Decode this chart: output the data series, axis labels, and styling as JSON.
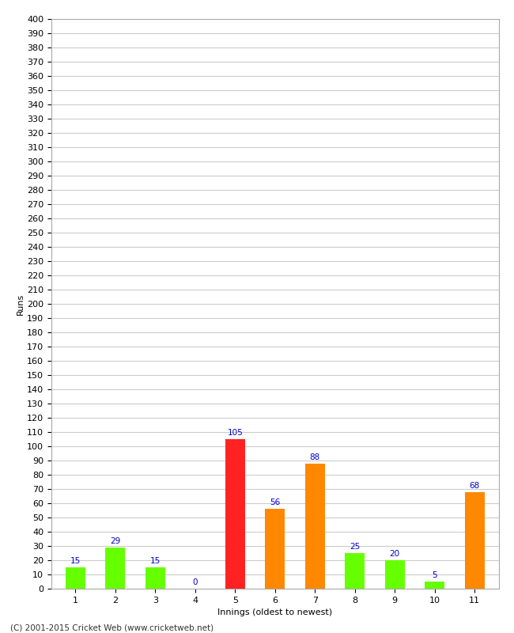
{
  "xlabel": "Innings (oldest to newest)",
  "ylabel": "Runs",
  "categories": [
    1,
    2,
    3,
    4,
    5,
    6,
    7,
    8,
    9,
    10,
    11
  ],
  "values": [
    15,
    29,
    15,
    0,
    105,
    56,
    88,
    25,
    20,
    5,
    68
  ],
  "bar_colors": [
    "#66ff00",
    "#66ff00",
    "#66ff00",
    "#66ff00",
    "#ff2222",
    "#ff8800",
    "#ff8800",
    "#66ff00",
    "#66ff00",
    "#66ff00",
    "#ff8800"
  ],
  "ylim": [
    0,
    400
  ],
  "ytick_step": 10,
  "background_color": "#ffffff",
  "grid_color": "#cccccc",
  "label_color": "#0000cc",
  "label_fontsize": 7.5,
  "axis_fontsize": 8,
  "ylabel_fontsize": 8,
  "footer": "(C) 2001-2015 Cricket Web (www.cricketweb.net)",
  "footer_fontsize": 7.5
}
